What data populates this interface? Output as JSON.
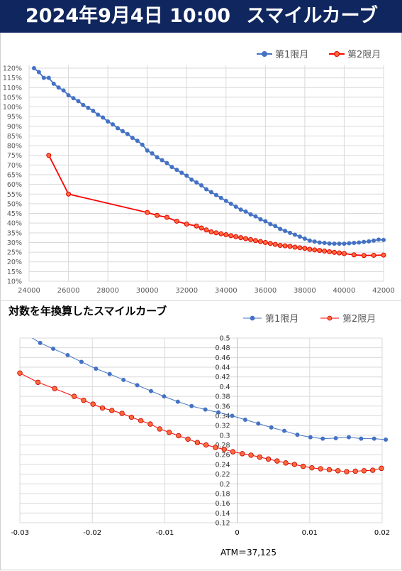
{
  "header": {
    "date": "2024年9月4日 10:00",
    "title": "スマイルカーブ"
  },
  "colors": {
    "header_bg": "#10265e",
    "series1": "#4472c4",
    "series2": "#ff0000"
  },
  "chart_data": [
    {
      "type": "line",
      "title": "",
      "xlabel": "",
      "ylabel": "",
      "xlim": [
        24000,
        42000
      ],
      "ylim": [
        0.1,
        1.22
      ],
      "x_ticks": [
        "24000",
        "26000",
        "28000",
        "30000",
        "32000",
        "34000",
        "36000",
        "38000",
        "40000",
        "42000"
      ],
      "y_ticks": [
        "10%",
        "15%",
        "20%",
        "25%",
        "30%",
        "35%",
        "40%",
        "45%",
        "50%",
        "55%",
        "60%",
        "65%",
        "70%",
        "75%",
        "80%",
        "85%",
        "90%",
        "95%",
        "100%",
        "105%",
        "110%",
        "115%",
        "120%"
      ],
      "grid": true,
      "legend": "top-right",
      "series": [
        {
          "name": "第1限月",
          "color": "#4472c4",
          "x": [
            24250,
            24500,
            24750,
            25000,
            25250,
            25500,
            25750,
            26000,
            26250,
            26500,
            26750,
            27000,
            27250,
            27500,
            27750,
            28000,
            28250,
            28500,
            28750,
            29000,
            29250,
            29500,
            29750,
            30000,
            30250,
            30500,
            30750,
            31000,
            31250,
            31500,
            31750,
            32000,
            32250,
            32500,
            32750,
            33000,
            33250,
            33500,
            33750,
            34000,
            34250,
            34500,
            34750,
            35000,
            35250,
            35500,
            35750,
            36000,
            36250,
            36500,
            36750,
            37000,
            37250,
            37500,
            37750,
            38000,
            38250,
            38500,
            38750,
            39000,
            39250,
            39500,
            39750,
            40000,
            40250,
            40500,
            40750,
            41000,
            41250,
            41500,
            41750,
            42000
          ],
          "y": [
            1.2,
            1.18,
            1.15,
            1.15,
            1.12,
            1.1,
            1.085,
            1.06,
            1.045,
            1.03,
            1.01,
            0.995,
            0.98,
            0.96,
            0.945,
            0.925,
            0.91,
            0.89,
            0.875,
            0.86,
            0.84,
            0.825,
            0.805,
            0.775,
            0.76,
            0.74,
            0.725,
            0.71,
            0.69,
            0.675,
            0.66,
            0.645,
            0.625,
            0.61,
            0.595,
            0.575,
            0.56,
            0.545,
            0.53,
            0.515,
            0.5,
            0.485,
            0.47,
            0.46,
            0.445,
            0.435,
            0.42,
            0.41,
            0.395,
            0.385,
            0.37,
            0.36,
            0.35,
            0.34,
            0.33,
            0.32,
            0.31,
            0.305,
            0.3,
            0.298,
            0.295,
            0.294,
            0.294,
            0.294,
            0.296,
            0.298,
            0.3,
            0.303,
            0.306,
            0.31,
            0.315,
            0.313
          ]
        },
        {
          "name": "第2限月",
          "color": "#ff0000",
          "x": [
            25000,
            26000,
            30000,
            30500,
            31000,
            31500,
            32000,
            32500,
            32750,
            33000,
            33250,
            33500,
            33750,
            34000,
            34250,
            34500,
            34750,
            35000,
            35250,
            35500,
            35750,
            36000,
            36250,
            36500,
            36750,
            37000,
            37250,
            37500,
            37750,
            38000,
            38250,
            38500,
            38750,
            39000,
            39250,
            39500,
            39750,
            40000,
            40500,
            41000,
            41500,
            42000
          ],
          "y": [
            0.75,
            0.55,
            0.455,
            0.44,
            0.43,
            0.41,
            0.395,
            0.385,
            0.375,
            0.365,
            0.355,
            0.35,
            0.345,
            0.34,
            0.335,
            0.33,
            0.325,
            0.32,
            0.315,
            0.31,
            0.305,
            0.3,
            0.295,
            0.29,
            0.285,
            0.283,
            0.28,
            0.276,
            0.273,
            0.27,
            0.265,
            0.262,
            0.259,
            0.256,
            0.252,
            0.249,
            0.246,
            0.243,
            0.236,
            0.233,
            0.234,
            0.235
          ]
        }
      ]
    },
    {
      "type": "line",
      "title": "対数を年換算したスマイルカーブ",
      "xlabel": "",
      "ylabel": "",
      "xlim": [
        -0.03,
        0.02
      ],
      "ylim": [
        0.12,
        0.5
      ],
      "x_ticks": [
        "-0.03",
        "-0.02",
        "-0.01",
        "0",
        "0.01",
        "0.02"
      ],
      "y_ticks": [
        "0.12",
        "0.14",
        "0.16",
        "0.18",
        "0.2",
        "0.22",
        "0.24",
        "0.26",
        "0.28",
        "0.3",
        "0.32",
        "0.34",
        "0.36",
        "0.38",
        "0.4",
        "0.42",
        "0.44",
        "0.46",
        "0.48",
        "0.5"
      ],
      "grid": true,
      "legend": "top-right",
      "annotation": "ATM＝37,125",
      "series": [
        {
          "name": "第1限月",
          "color": "#4472c4",
          "x": [
            -0.0308,
            -0.0288,
            -0.0272,
            -0.0254,
            -0.0234,
            -0.0215,
            -0.0195,
            -0.0176,
            -0.0157,
            -0.0138,
            -0.0119,
            -0.0101,
            -0.0082,
            -0.0063,
            -0.0044,
            -0.0026,
            -0.0007,
            0.0011,
            0.0029,
            0.0047,
            0.0065,
            0.0083,
            0.0101,
            0.0118,
            0.0136,
            0.0154,
            0.0171,
            0.0189,
            0.0205
          ],
          "y": [
            0.51,
            0.505,
            0.49,
            0.478,
            0.465,
            0.451,
            0.437,
            0.426,
            0.414,
            0.403,
            0.391,
            0.38,
            0.369,
            0.36,
            0.353,
            0.347,
            0.34,
            0.332,
            0.324,
            0.316,
            0.309,
            0.301,
            0.296,
            0.293,
            0.294,
            0.296,
            0.293,
            0.293,
            0.291
          ]
        },
        {
          "name": "第2限月",
          "color": "#ff0000",
          "x": [
            -0.03,
            -0.0275,
            -0.0252,
            -0.0225,
            -0.0212,
            -0.0199,
            -0.0186,
            -0.0173,
            -0.0159,
            -0.0146,
            -0.0133,
            -0.012,
            -0.0107,
            -0.0094,
            -0.0081,
            -0.0068,
            -0.0055,
            -0.0043,
            -0.003,
            -0.0018,
            -0.0006,
            0.0007,
            0.0019,
            0.0031,
            0.0043,
            0.0055,
            0.0067,
            0.0079,
            0.0091,
            0.0103,
            0.0115,
            0.0127,
            0.0139,
            0.0151,
            0.0163,
            0.0175,
            0.0187,
            0.0199
          ],
          "y": [
            0.428,
            0.409,
            0.396,
            0.38,
            0.372,
            0.364,
            0.356,
            0.351,
            0.345,
            0.337,
            0.33,
            0.323,
            0.313,
            0.306,
            0.299,
            0.292,
            0.285,
            0.28,
            0.275,
            0.271,
            0.266,
            0.262,
            0.259,
            0.255,
            0.251,
            0.247,
            0.243,
            0.24,
            0.236,
            0.233,
            0.231,
            0.229,
            0.227,
            0.225,
            0.226,
            0.227,
            0.228,
            0.232
          ]
        }
      ]
    }
  ]
}
